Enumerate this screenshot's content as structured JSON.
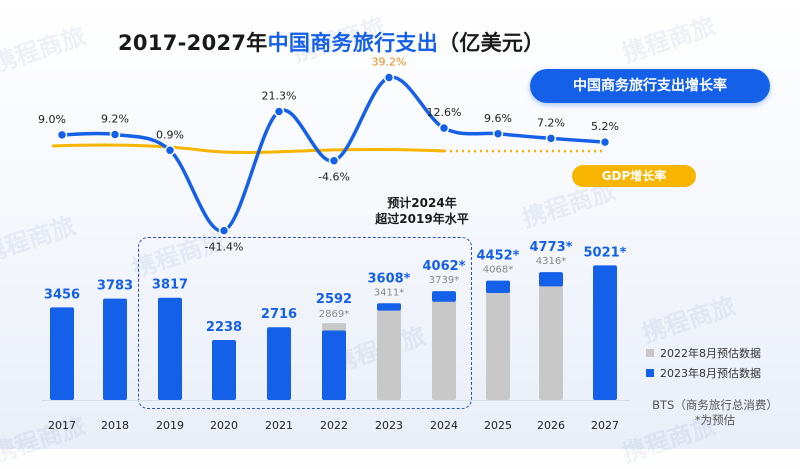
{
  "title": {
    "prefix": "2017-2027年",
    "highlight": "中国商务旅行支出",
    "suffix": "（亿美元）"
  },
  "labels": {
    "growth_pill": "中国商务旅行支出增长率",
    "gdp_pill": "GDP增长率",
    "callout_line1": "预计2024年",
    "callout_line2": "超过2019年水平",
    "legend_gray": "2022年8月预估数据",
    "legend_blue": "2023年8月预估数据",
    "source_line1": "BTS（商务旅行总消费）",
    "source_line2": "*为预估"
  },
  "watermark": "携程商旅",
  "colors": {
    "blue": "#1560e8",
    "gray": "#c8c8c8",
    "gdp": "#f7b500",
    "orange": "#f08a24",
    "text": "#1a1a1a"
  },
  "chart_data": [
    {
      "type": "bar",
      "categories": [
        "2017",
        "2018",
        "2019",
        "2020",
        "2021",
        "2022",
        "2023",
        "2024",
        "2025",
        "2026",
        "2027"
      ],
      "series": [
        {
          "name": "2023年8月预估数据",
          "values": [
            3456,
            3783,
            3817,
            2238,
            2716,
            2592,
            3608,
            4062,
            4452,
            4773,
            5021
          ],
          "labels": [
            "3456",
            "3783",
            "3817",
            "2238",
            "2716",
            "2592",
            "3608*",
            "4062*",
            "4452*",
            "4773*",
            "5021*"
          ]
        },
        {
          "name": "2022年8月预估数据",
          "values": [
            null,
            null,
            null,
            null,
            null,
            2869,
            3411,
            3739,
            4068,
            4316,
            null
          ],
          "labels": [
            "",
            "",
            "",
            "",
            "",
            "2869*",
            "3411*",
            "3739*",
            "4068*",
            "4316*",
            ""
          ]
        }
      ]
    },
    {
      "type": "line",
      "x": [
        "2017",
        "2018",
        "2019",
        "2020",
        "2021",
        "2022",
        "2023",
        "2024",
        "2025",
        "2026",
        "2027"
      ],
      "series": [
        {
          "name": "中国商务旅行支出增长率",
          "values": [
            9.0,
            9.2,
            0.9,
            -41.4,
            21.3,
            -4.6,
            39.2,
            12.6,
            9.6,
            7.2,
            5.2
          ],
          "labels": [
            "9.0%",
            "9.2%",
            "0.9%",
            "-41.4%",
            "21.3%",
            "-4.6%",
            "39.2%",
            "12.6%",
            "9.6%",
            "7.2%",
            "5.2%"
          ]
        },
        {
          "name": "GDP增长率"
        }
      ]
    }
  ]
}
